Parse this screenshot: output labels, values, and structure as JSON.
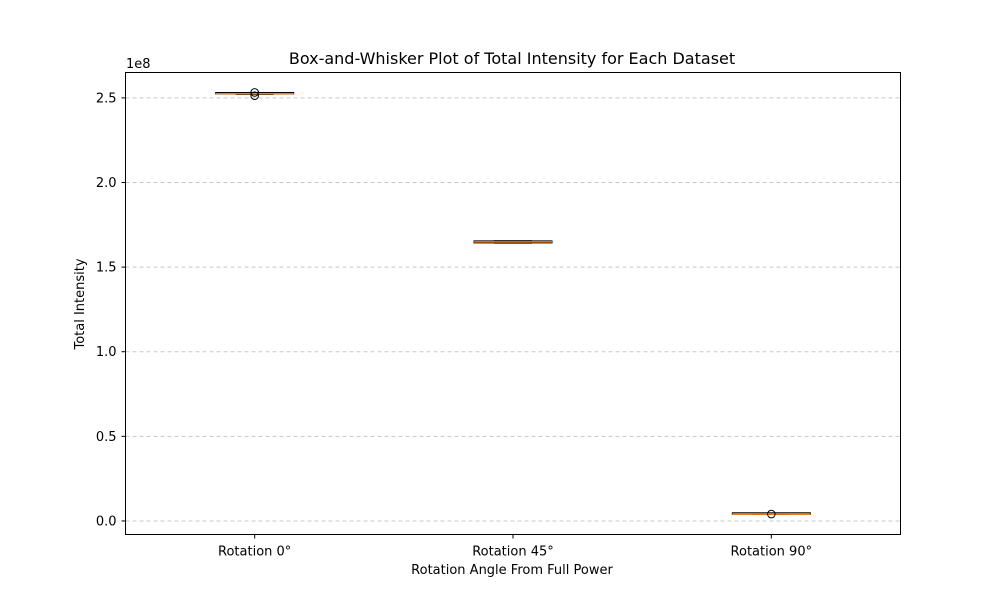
{
  "chart_data": {
    "type": "box",
    "title": "Box-and-Whisker Plot of Total Intensity for Each Dataset",
    "xlabel": "Rotation Angle From Full Power",
    "ylabel": "Total Intensity",
    "y_multiplier_label": "1e8",
    "y_scale": 100000000,
    "ylim": [
      -0.08,
      2.65
    ],
    "yticks": [
      0.0,
      0.5,
      1.0,
      1.5,
      2.0,
      2.5
    ],
    "ytick_labels": [
      "0.0",
      "0.5",
      "1.0",
      "1.5",
      "2.0",
      "2.5"
    ],
    "grid": "y-dashed",
    "categories": [
      "Rotation 0°",
      "Rotation 45°",
      "Rotation 90°"
    ],
    "boxes": [
      {
        "whislo": 2.521,
        "q1": 2.523,
        "med": 2.525,
        "q3": 2.527,
        "whishi": 2.529,
        "fliers": [
          2.513,
          2.532
        ]
      },
      {
        "whislo": 1.642,
        "q1": 1.643,
        "med": 1.649,
        "q3": 1.655,
        "whishi": 1.656,
        "fliers": []
      },
      {
        "whislo": 0.0385,
        "q1": 0.0395,
        "med": 0.04,
        "q3": 0.0405,
        "whishi": 0.0415,
        "fliers": [
          0.041
        ]
      }
    ],
    "colors": {
      "median": "#ff7f0e",
      "box": "#000000",
      "grid": "#c8c8c8"
    }
  }
}
